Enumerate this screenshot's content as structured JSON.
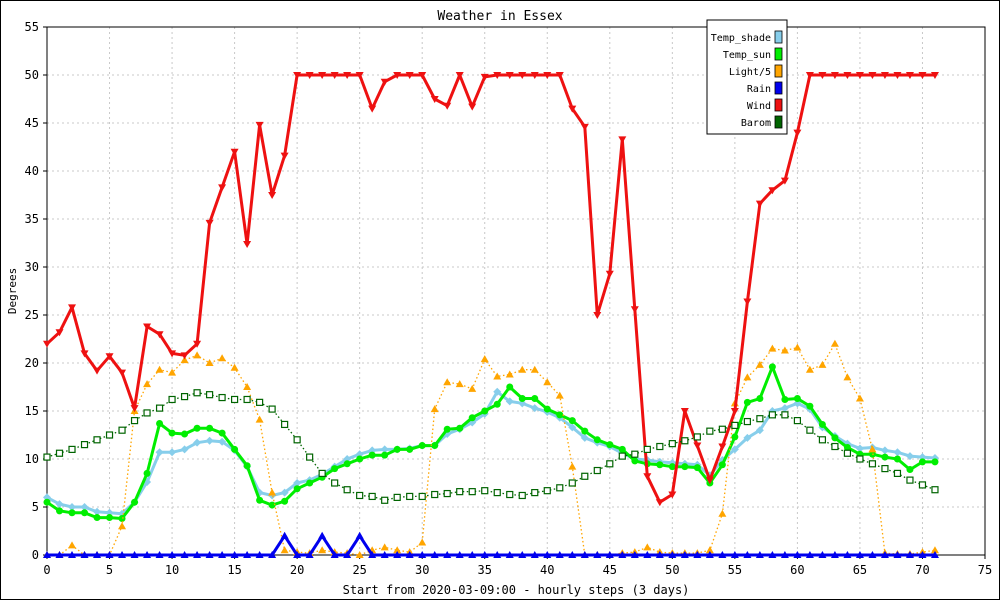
{
  "chart_data": {
    "type": "line",
    "title": "Weather in Essex",
    "xlabel": "Start from 2020-03-09:00 - hourly steps (3 days)",
    "ylabel": "Degrees",
    "xlim": [
      0,
      75
    ],
    "ylim": [
      0,
      55
    ],
    "xticks": [
      0,
      5,
      10,
      15,
      20,
      25,
      30,
      35,
      40,
      45,
      50,
      55,
      60,
      65,
      70,
      75
    ],
    "yticks": [
      0,
      5,
      10,
      15,
      20,
      25,
      30,
      35,
      40,
      45,
      50,
      55
    ],
    "grid": true,
    "legend_position": "top-right",
    "series": [
      {
        "name": "Temp_shade",
        "color": "#87ceeb",
        "marker": "diamond",
        "line": "solid",
        "values": [
          6.0,
          5.3,
          5.0,
          5.0,
          4.5,
          4.4,
          4.3,
          5.5,
          7.6,
          10.7,
          10.7,
          11.0,
          11.7,
          11.9,
          11.8,
          10.9,
          9.2,
          6.5,
          6.2,
          6.5,
          7.5,
          7.8,
          8.4,
          9.2,
          10.0,
          10.5,
          10.9,
          11.0,
          11.0,
          11.1,
          11.4,
          11.4,
          12.6,
          13.1,
          13.8,
          14.7,
          17.0,
          16.0,
          15.8,
          15.3,
          14.9,
          14.3,
          13.3,
          12.2,
          11.7,
          11.3,
          10.6,
          10.0,
          9.9,
          9.7,
          9.6,
          9.5,
          9.4,
          8.3,
          9.9,
          11.0,
          12.2,
          13.0,
          15.0,
          15.3,
          15.8,
          15.2,
          13.3,
          12.4,
          11.6,
          11.1,
          11.2,
          10.9,
          10.7,
          10.3,
          10.2,
          10.1
        ]
      },
      {
        "name": "Temp_sun",
        "color": "#00ee00",
        "marker": "circle",
        "line": "solid",
        "values": [
          5.5,
          4.6,
          4.4,
          4.4,
          3.9,
          3.9,
          3.8,
          5.5,
          8.5,
          13.7,
          12.7,
          12.6,
          13.2,
          13.2,
          12.7,
          11.0,
          9.3,
          5.7,
          5.2,
          5.6,
          6.9,
          7.5,
          8.1,
          9.0,
          9.5,
          10.0,
          10.4,
          10.4,
          11.0,
          11.0,
          11.4,
          11.4,
          13.1,
          13.2,
          14.3,
          15.0,
          15.7,
          17.5,
          16.3,
          16.3,
          15.2,
          14.6,
          14.0,
          12.9,
          12.0,
          11.5,
          11.0,
          9.8,
          9.5,
          9.4,
          9.2,
          9.2,
          9.1,
          7.5,
          9.4,
          12.3,
          15.9,
          16.3,
          19.6,
          16.2,
          16.3,
          15.5,
          13.6,
          12.2,
          11.2,
          10.5,
          10.5,
          10.2,
          10.0,
          8.9,
          9.7,
          9.7
        ]
      },
      {
        "name": "Light/5",
        "color": "#ffa500",
        "marker": "triangle-up",
        "line": "dotted",
        "values": [
          0,
          0,
          1.0,
          0,
          0,
          0,
          3.0,
          15.0,
          17.8,
          19.3,
          19.0,
          20.3,
          20.8,
          20.0,
          20.5,
          19.5,
          17.5,
          14.1,
          6.5,
          0.5,
          0.3,
          0.2,
          0.5,
          0.3,
          0.2,
          0,
          0.5,
          0.8,
          0.5,
          0.3,
          1.3,
          15.2,
          18.0,
          17.8,
          17.3,
          20.4,
          18.6,
          18.8,
          19.3,
          19.3,
          18.0,
          16.6,
          9.2,
          0,
          0,
          0,
          0.2,
          0.3,
          0.8,
          0.3,
          0.2,
          0.2,
          0.2,
          0.5,
          4.3,
          15.8,
          18.5,
          19.8,
          21.5,
          21.3,
          21.6,
          19.3,
          19.8,
          22.0,
          18.5,
          16.3,
          11.0,
          0.2,
          0.1,
          0.1,
          0.3,
          0.5
        ]
      },
      {
        "name": "Rain",
        "color": "#0000ee",
        "marker": "triangle-up",
        "line": "solid",
        "values": [
          0,
          0,
          0,
          0,
          0,
          0,
          0,
          0,
          0,
          0,
          0,
          0,
          0,
          0,
          0,
          0,
          0,
          0,
          0,
          2.0,
          0,
          0,
          2.0,
          0,
          0,
          2.0,
          0,
          0,
          0,
          0,
          0,
          0,
          0,
          0,
          0,
          0,
          0,
          0,
          0,
          0,
          0,
          0,
          0,
          0,
          0,
          0,
          0,
          0,
          0,
          0,
          0,
          0,
          0,
          0,
          0,
          0,
          0,
          0,
          0,
          0,
          0,
          0,
          0,
          0,
          0,
          0,
          0,
          0,
          0,
          0,
          0,
          0
        ]
      },
      {
        "name": "Wind",
        "color": "#ee1111",
        "marker": "triangle-down",
        "line": "solid",
        "values": [
          22.0,
          23.2,
          25.8,
          21.0,
          19.2,
          20.7,
          19.0,
          15.3,
          23.8,
          23.0,
          21.0,
          20.8,
          22.0,
          34.6,
          38.3,
          42.0,
          32.4,
          44.8,
          37.5,
          41.6,
          50.0,
          50.0,
          50.0,
          50.0,
          50.0,
          50.0,
          46.5,
          49.3,
          50.0,
          50.0,
          50.0,
          47.5,
          46.8,
          50.0,
          46.7,
          49.8,
          50.0,
          50.0,
          50.0,
          50.0,
          50.0,
          50.0,
          46.5,
          44.6,
          25.0,
          29.3,
          43.3,
          25.6,
          8.2,
          5.5,
          6.3,
          15.0,
          11.4,
          7.8,
          11.3,
          15.0,
          26.4,
          36.6,
          38.0,
          39.0,
          44.0,
          50.0,
          50.0,
          50.0,
          50.0,
          50.0,
          50.0,
          50.0,
          50.0,
          50.0,
          50.0,
          50.0
        ]
      },
      {
        "name": "Barom",
        "color": "#006400",
        "marker": "square-open",
        "line": "dotted",
        "values": [
          10.2,
          10.6,
          11.0,
          11.5,
          12.0,
          12.5,
          13.0,
          14.0,
          14.8,
          15.3,
          16.2,
          16.5,
          16.9,
          16.7,
          16.4,
          16.2,
          16.2,
          15.9,
          15.2,
          13.6,
          12.0,
          10.2,
          8.5,
          7.5,
          6.8,
          6.2,
          6.1,
          5.7,
          6.0,
          6.1,
          6.1,
          6.3,
          6.4,
          6.6,
          6.6,
          6.7,
          6.5,
          6.3,
          6.2,
          6.5,
          6.7,
          7.0,
          7.5,
          8.2,
          8.8,
          9.5,
          10.3,
          10.5,
          11.0,
          11.3,
          11.6,
          11.9,
          12.3,
          12.9,
          13.1,
          13.5,
          13.9,
          14.2,
          14.6,
          14.6,
          14.0,
          13.0,
          12.0,
          11.3,
          10.6,
          10.0,
          9.5,
          9.0,
          8.5,
          7.8,
          7.3,
          6.8
        ]
      }
    ]
  }
}
